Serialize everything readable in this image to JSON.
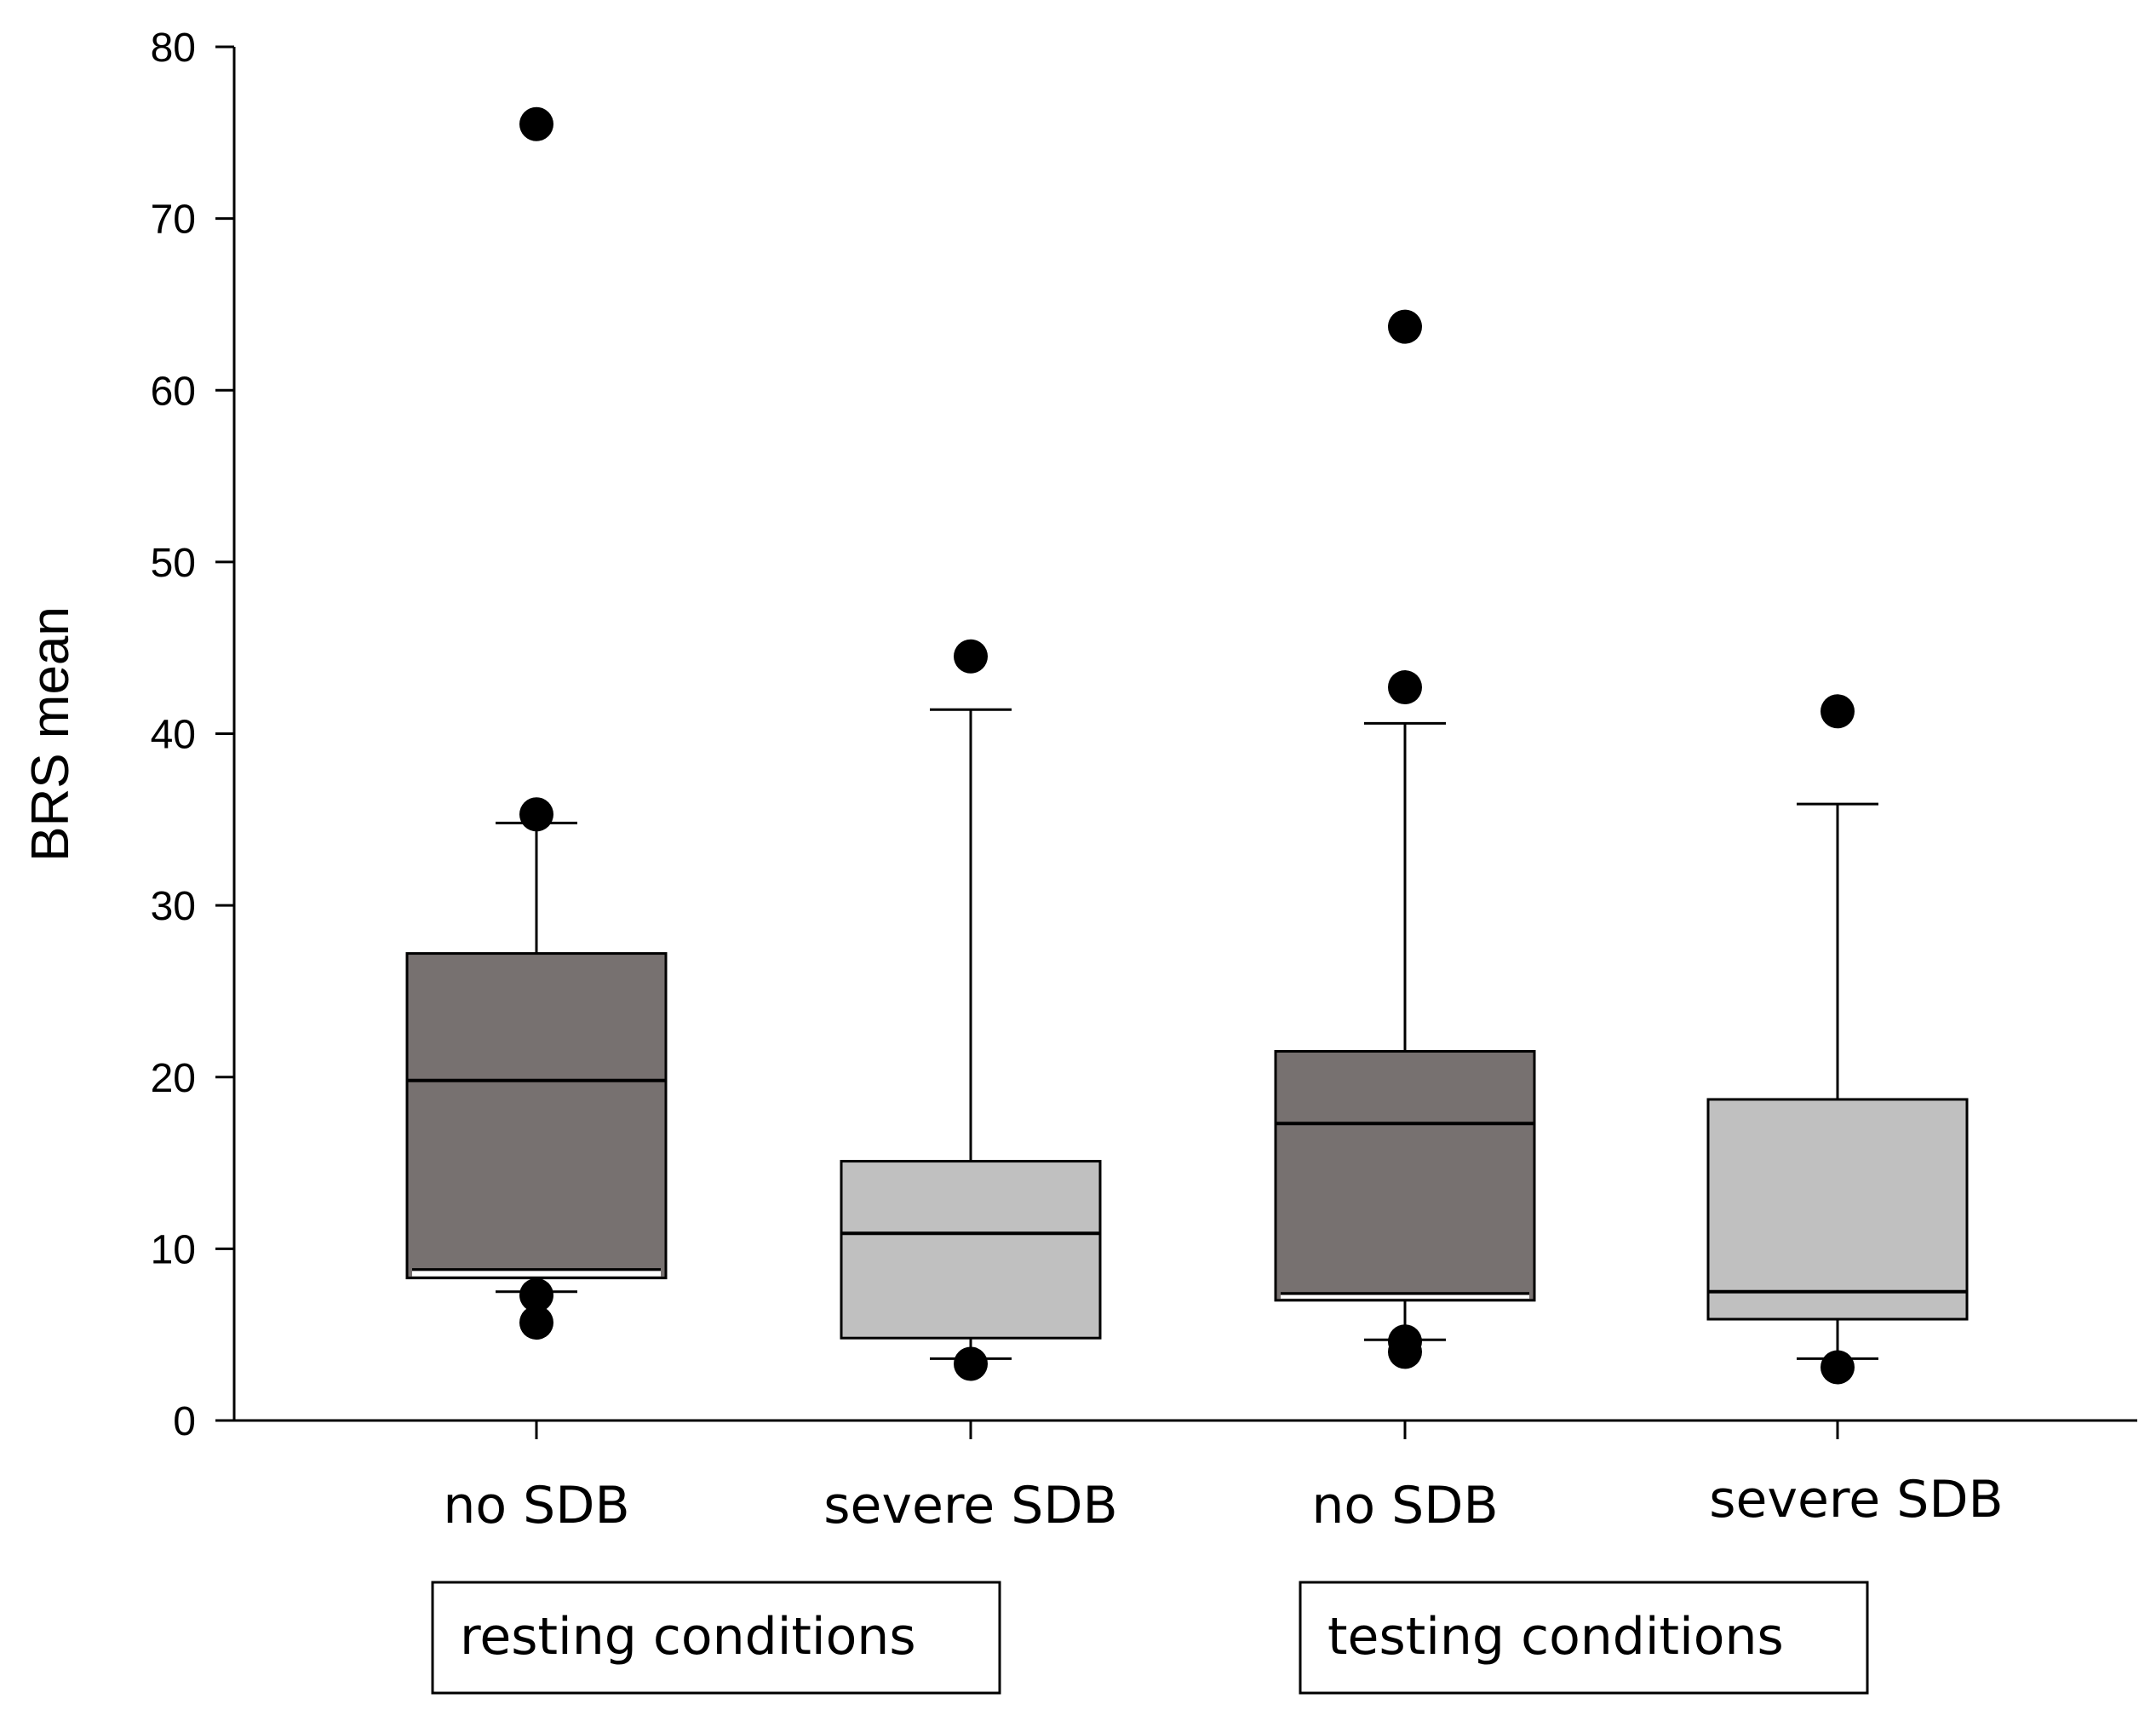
{
  "chart_data": {
    "type": "box",
    "title": "",
    "xlabel": "",
    "ylabel": "BRS mean",
    "ylim": [
      0,
      80
    ],
    "yticks": [
      0,
      10,
      20,
      30,
      40,
      50,
      60,
      70,
      80
    ],
    "grid": false,
    "categories": [
      "no SDB",
      "severe SDB",
      "no SDB",
      "severe SDB"
    ],
    "groups": [
      {
        "label": "resting conditions",
        "categories": [
          0,
          1
        ]
      },
      {
        "label": "testing conditions",
        "categories": [
          2,
          3
        ]
      }
    ],
    "boxes": [
      {
        "category": "no SDB",
        "group": "resting conditions",
        "q1": 8.3,
        "median": 19.8,
        "q3": 27.2,
        "whisker_low": 7.5,
        "whisker_high": 34.8,
        "extra_line": 8.8,
        "outliers": [
          75.5,
          35.3,
          7.3,
          5.7
        ],
        "color": "#777170"
      },
      {
        "category": "severe SDB",
        "group": "resting conditions",
        "q1": 4.8,
        "median": 10.9,
        "q3": 15.1,
        "whisker_low": 3.6,
        "whisker_high": 41.4,
        "outliers": [
          44.5,
          3.3
        ],
        "color": "#c0c0c0"
      },
      {
        "category": "no SDB",
        "group": "testing conditions",
        "q1": 7.0,
        "median": 17.3,
        "q3": 21.5,
        "whisker_low": 4.7,
        "whisker_high": 40.6,
        "extra_line": 7.4,
        "outliers": [
          63.7,
          42.7,
          4.6,
          4.0
        ],
        "color": "#777170"
      },
      {
        "category": "severe SDB",
        "group": "testing conditions",
        "q1": 5.9,
        "median": 7.5,
        "q3": 18.7,
        "whisker_low": 3.6,
        "whisker_high": 35.9,
        "outliers": [
          41.3,
          3.1
        ],
        "color": "#c0c0c0"
      }
    ]
  }
}
